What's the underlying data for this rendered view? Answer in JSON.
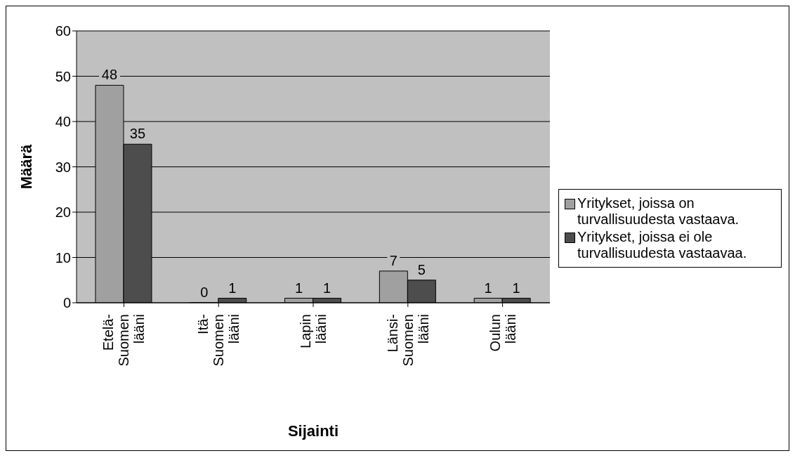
{
  "chart_data": {
    "type": "bar",
    "xlabel": "Sijainti",
    "ylabel": "Määrä",
    "categories": [
      "Etelä-Suomen lääni",
      "Itä-Suomen lääni",
      "Lapin lääni",
      "Länsi-Suomen lääni",
      "Oulun lääni"
    ],
    "series": [
      {
        "name": "Yritykset, joissa on turvallisuudesta vastaava.",
        "color": "#a0a0a0",
        "values": [
          48,
          0,
          1,
          7,
          1
        ]
      },
      {
        "name": "Yritykset, joissa ei ole turvallisuudesta vastaavaa.",
        "color": "#4d4d4d",
        "values": [
          35,
          1,
          1,
          5,
          1
        ]
      }
    ],
    "ylim": [
      0,
      60
    ],
    "yticks": [
      0,
      10,
      20,
      30,
      40,
      50,
      60
    ],
    "grid": "y",
    "legend": "right",
    "data_labels": true
  }
}
